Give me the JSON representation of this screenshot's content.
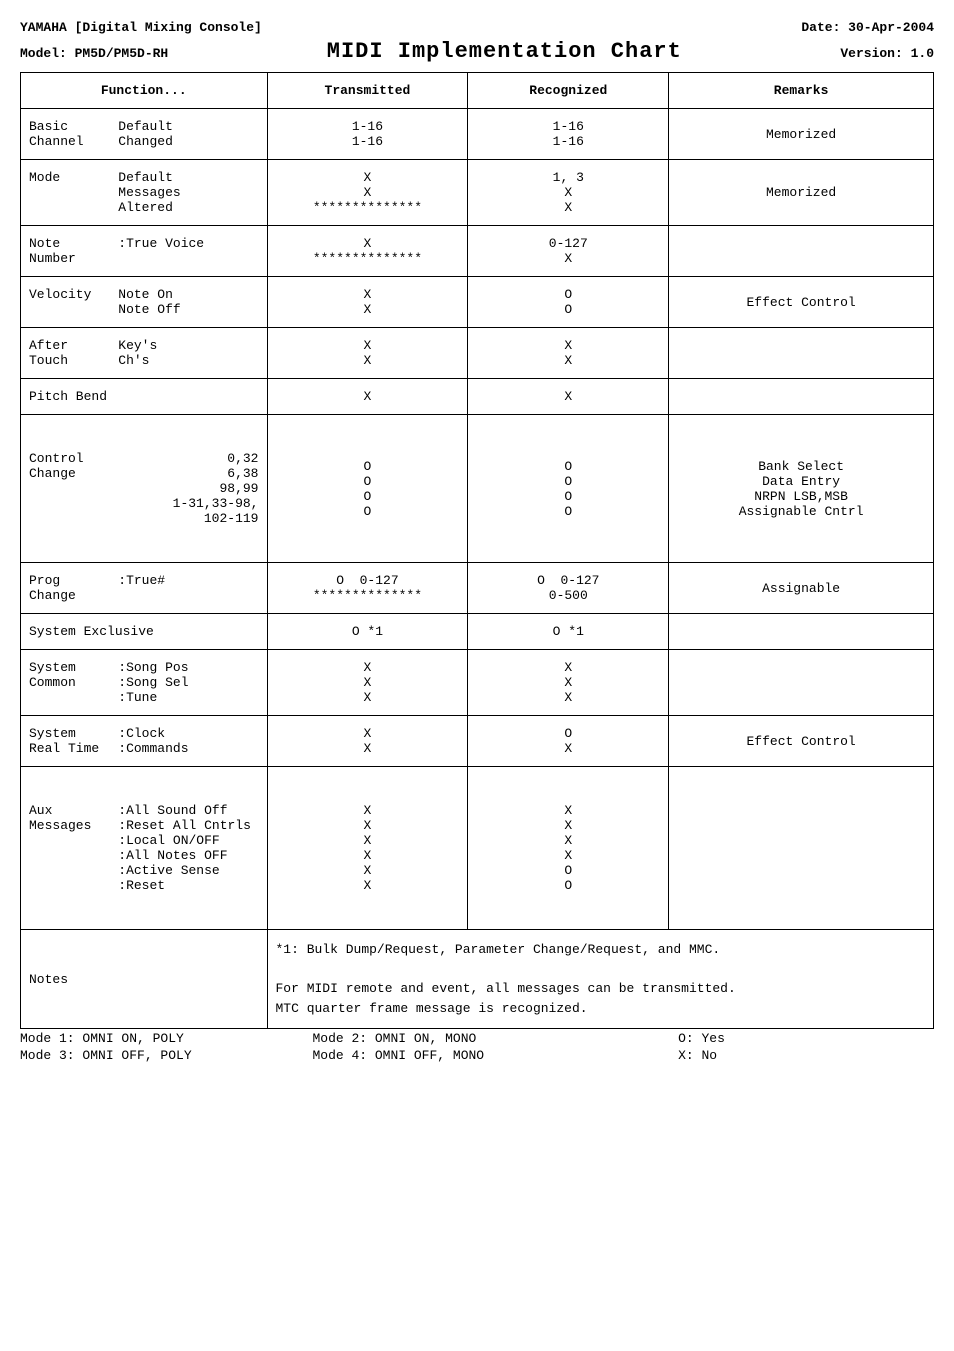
{
  "header": {
    "brand_product": "YAMAHA [Digital Mixing Console]",
    "date": "Date: 30-Apr-2004",
    "model": "Model: PM5D/PM5D-RH",
    "title": "MIDI Implementation Chart",
    "version": "Version: 1.0"
  },
  "columns": {
    "function": "Function...",
    "transmitted": "Transmitted",
    "recognized": "Recognized",
    "remarks": "Remarks"
  },
  "rows": {
    "basic": {
      "left": "Basic\nChannel",
      "right": "Default\nChanged",
      "tx": "1-16\n1-16",
      "rx": "1-16\n1-16",
      "rem": "Memorized"
    },
    "mode": {
      "left": "Mode",
      "right": "Default\nMessages\nAltered",
      "tx": "X\nX\n**************",
      "rx": "1, 3\nX\nX",
      "rem": "Memorized"
    },
    "note": {
      "left": "Note\nNumber",
      "right": ":True Voice",
      "tx": "X\n**************",
      "rx": "0-127\nX",
      "rem": ""
    },
    "velocity": {
      "left": "Velocity",
      "right": "Note On\nNote Off",
      "tx": "X\nX",
      "rx": "O\nO",
      "rem": "Effect Control"
    },
    "after": {
      "left": "After\nTouch",
      "right": "Key's\nCh's",
      "tx": "X\nX",
      "rx": "X\nX",
      "rem": ""
    },
    "pitch": {
      "full": "Pitch Bend",
      "tx": "X",
      "rx": "X",
      "rem": ""
    },
    "ctrl": {
      "left": "Control\nChange",
      "right": "0,32\n6,38\n98,99\n1-31,33-98,\n102-119",
      "tx": "O\nO\nO\nO",
      "rx": "O\nO\nO\nO",
      "rem": "Bank Select\nData Entry\nNRPN LSB,MSB\nAssignable Cntrl"
    },
    "prog": {
      "left": "Prog\nChange",
      "right": ":True#",
      "tx": "O  0-127\n**************",
      "rx": "O  0-127\n0-500",
      "rem": "Assignable"
    },
    "sysex": {
      "full": "System Exclusive",
      "tx": "O *1",
      "rx": "O *1",
      "rem": ""
    },
    "syscom": {
      "left": "System\nCommon",
      "right": ":Song Pos\n:Song Sel\n:Tune",
      "tx": "X\nX\nX",
      "rx": "X\nX\nX",
      "rem": ""
    },
    "sysrt": {
      "left": "System\nReal Time",
      "right": ":Clock\n:Commands",
      "tx": "X\nX",
      "rx": "O\nX",
      "rem": "Effect Control"
    },
    "aux": {
      "left": "Aux\nMessages",
      "right": ":All Sound Off\n:Reset All Cntrls\n:Local ON/OFF\n:All Notes OFF\n:Active Sense\n:Reset",
      "tx": "X\nX\nX\nX\nX\nX",
      "rx": "X\nX\nX\nX\nO\nO",
      "rem": ""
    },
    "notes": {
      "label": "Notes",
      "text": "*1: Bulk Dump/Request, Parameter Change/Request, and MMC.\n\nFor MIDI remote and event, all messages can be transmitted.\nMTC quarter frame message is recognized."
    }
  },
  "footer": {
    "l1_left": "Mode 1: OMNI ON, POLY",
    "l1_mid": "Mode 2: OMNI ON, MONO",
    "l1_right": "O: Yes",
    "l2_left": "Mode 3: OMNI OFF, POLY",
    "l2_mid": "Mode 4: OMNI OFF, MONO",
    "l2_right": "X: No"
  }
}
